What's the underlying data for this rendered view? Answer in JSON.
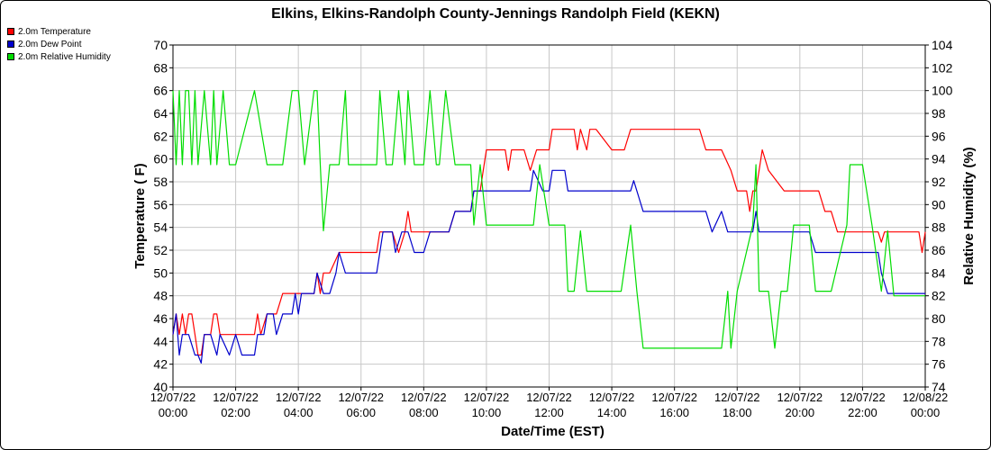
{
  "chart_data": {
    "type": "line",
    "title": "Elkins, Elkins-Randolph County-Jennings Randolph Field (KEKN)",
    "xlabel": "Date/Time (EST)",
    "ylabel": "Temperature ( F)",
    "y2label": "Relative Humidity (%)",
    "xlim": [
      0,
      24
    ],
    "ylim": [
      40,
      70
    ],
    "y2lim": [
      74,
      104
    ],
    "yticks": [
      40,
      42,
      44,
      46,
      48,
      50,
      52,
      54,
      56,
      58,
      60,
      62,
      64,
      66,
      68,
      70
    ],
    "y2ticks": [
      74,
      76,
      78,
      80,
      82,
      84,
      86,
      88,
      90,
      92,
      94,
      96,
      98,
      100,
      102,
      104
    ],
    "xticks": [
      {
        "x": 0,
        "date": "12/07/22",
        "time": "00:00"
      },
      {
        "x": 2,
        "date": "12/07/22",
        "time": "02:00"
      },
      {
        "x": 4,
        "date": "12/07/22",
        "time": "04:00"
      },
      {
        "x": 6,
        "date": "12/07/22",
        "time": "06:00"
      },
      {
        "x": 8,
        "date": "12/07/22",
        "time": "08:00"
      },
      {
        "x": 10,
        "date": "12/07/22",
        "time": "10:00"
      },
      {
        "x": 12,
        "date": "12/07/22",
        "time": "12:00"
      },
      {
        "x": 14,
        "date": "12/07/22",
        "time": "14:00"
      },
      {
        "x": 16,
        "date": "12/07/22",
        "time": "16:00"
      },
      {
        "x": 18,
        "date": "12/07/22",
        "time": "18:00"
      },
      {
        "x": 20,
        "date": "12/07/22",
        "time": "20:00"
      },
      {
        "x": 22,
        "date": "12/07/22",
        "time": "22:00"
      },
      {
        "x": 24,
        "date": "12/08/22",
        "time": "00:00"
      }
    ],
    "grid": true,
    "legend_position": "top-left",
    "series": [
      {
        "name": "2.0m Temperature",
        "axis": "left",
        "color": "#ff0000",
        "points": [
          [
            0,
            44.6
          ],
          [
            0.1,
            46.4
          ],
          [
            0.2,
            44.6
          ],
          [
            0.3,
            46.4
          ],
          [
            0.4,
            44.6
          ],
          [
            0.5,
            46.4
          ],
          [
            0.6,
            46.4
          ],
          [
            0.7,
            44.6
          ],
          [
            0.8,
            42.8
          ],
          [
            0.9,
            42.8
          ],
          [
            1.0,
            44.6
          ],
          [
            1.2,
            44.6
          ],
          [
            1.3,
            46.4
          ],
          [
            1.4,
            46.4
          ],
          [
            1.5,
            44.6
          ],
          [
            2.0,
            44.6
          ],
          [
            2.6,
            44.6
          ],
          [
            2.7,
            46.4
          ],
          [
            2.8,
            44.6
          ],
          [
            3.0,
            46.4
          ],
          [
            3.3,
            46.4
          ],
          [
            3.5,
            48.2
          ],
          [
            4.0,
            48.2
          ],
          [
            4.5,
            48.2
          ],
          [
            4.6,
            50.0
          ],
          [
            4.7,
            48.2
          ],
          [
            4.8,
            50.0
          ],
          [
            5.0,
            50.0
          ],
          [
            5.3,
            51.8
          ],
          [
            6.0,
            51.8
          ],
          [
            6.5,
            51.8
          ],
          [
            6.6,
            53.6
          ],
          [
            7.0,
            53.6
          ],
          [
            7.2,
            51.8
          ],
          [
            7.4,
            53.6
          ],
          [
            7.5,
            55.4
          ],
          [
            7.6,
            53.6
          ],
          [
            8.0,
            53.6
          ],
          [
            8.3,
            53.6
          ],
          [
            8.5,
            53.6
          ],
          [
            8.8,
            53.6
          ],
          [
            9.0,
            55.4
          ],
          [
            9.5,
            55.4
          ],
          [
            9.6,
            57.2
          ],
          [
            9.8,
            57.2
          ],
          [
            9.9,
            59.0
          ],
          [
            10.0,
            60.8
          ],
          [
            10.6,
            60.8
          ],
          [
            10.7,
            59.0
          ],
          [
            10.8,
            60.8
          ],
          [
            11.2,
            60.8
          ],
          [
            11.4,
            59.0
          ],
          [
            11.6,
            60.8
          ],
          [
            11.8,
            60.8
          ],
          [
            12.0,
            60.8
          ],
          [
            12.1,
            62.6
          ],
          [
            12.8,
            62.6
          ],
          [
            12.9,
            60.8
          ],
          [
            13.0,
            62.6
          ],
          [
            13.2,
            60.8
          ],
          [
            13.3,
            62.6
          ],
          [
            13.5,
            62.6
          ],
          [
            14.0,
            60.8
          ],
          [
            14.4,
            60.8
          ],
          [
            14.6,
            62.6
          ],
          [
            16.0,
            62.6
          ],
          [
            16.2,
            62.6
          ],
          [
            16.8,
            62.6
          ],
          [
            17.0,
            60.8
          ],
          [
            17.5,
            60.8
          ],
          [
            17.8,
            59.0
          ],
          [
            18.0,
            57.2
          ],
          [
            18.3,
            57.2
          ],
          [
            18.4,
            55.4
          ],
          [
            18.5,
            57.2
          ],
          [
            18.6,
            57.2
          ],
          [
            18.7,
            59.0
          ],
          [
            18.8,
            60.8
          ],
          [
            19.0,
            59.0
          ],
          [
            19.5,
            57.2
          ],
          [
            19.7,
            57.2
          ],
          [
            20.0,
            57.2
          ],
          [
            20.6,
            57.2
          ],
          [
            20.8,
            55.4
          ],
          [
            21.0,
            55.4
          ],
          [
            21.2,
            53.6
          ],
          [
            22.0,
            53.6
          ],
          [
            22.5,
            53.6
          ],
          [
            22.6,
            52.7
          ],
          [
            22.7,
            53.6
          ],
          [
            23.0,
            53.6
          ],
          [
            23.8,
            53.6
          ],
          [
            23.9,
            51.8
          ],
          [
            24.0,
            53.6
          ]
        ]
      },
      {
        "name": "2.0m Dew Point",
        "axis": "left",
        "color": "#0000cc",
        "points": [
          [
            0,
            44.6
          ],
          [
            0.1,
            46.4
          ],
          [
            0.2,
            42.8
          ],
          [
            0.3,
            44.6
          ],
          [
            0.5,
            44.6
          ],
          [
            0.7,
            42.8
          ],
          [
            0.8,
            42.8
          ],
          [
            0.9,
            42.1
          ],
          [
            1.0,
            44.6
          ],
          [
            1.2,
            44.6
          ],
          [
            1.4,
            42.8
          ],
          [
            1.5,
            44.6
          ],
          [
            1.8,
            42.8
          ],
          [
            2.0,
            44.6
          ],
          [
            2.2,
            42.8
          ],
          [
            2.6,
            42.8
          ],
          [
            2.7,
            44.6
          ],
          [
            2.9,
            44.6
          ],
          [
            3.0,
            46.4
          ],
          [
            3.2,
            46.4
          ],
          [
            3.3,
            44.6
          ],
          [
            3.5,
            46.4
          ],
          [
            3.8,
            46.4
          ],
          [
            3.9,
            48.2
          ],
          [
            4.0,
            46.4
          ],
          [
            4.1,
            48.2
          ],
          [
            4.5,
            48.2
          ],
          [
            4.6,
            50.0
          ],
          [
            4.8,
            48.2
          ],
          [
            5.0,
            48.2
          ],
          [
            5.2,
            50.0
          ],
          [
            5.3,
            51.8
          ],
          [
            5.5,
            50.0
          ],
          [
            6.0,
            50.0
          ],
          [
            6.5,
            50.0
          ],
          [
            6.6,
            51.8
          ],
          [
            6.7,
            53.6
          ],
          [
            7.0,
            53.6
          ],
          [
            7.1,
            51.8
          ],
          [
            7.3,
            53.6
          ],
          [
            7.5,
            53.6
          ],
          [
            7.7,
            51.8
          ],
          [
            8.0,
            51.8
          ],
          [
            8.2,
            53.6
          ],
          [
            8.5,
            53.6
          ],
          [
            8.8,
            53.6
          ],
          [
            9.0,
            55.4
          ],
          [
            9.5,
            55.4
          ],
          [
            9.6,
            57.2
          ],
          [
            10.0,
            57.2
          ],
          [
            10.6,
            57.2
          ],
          [
            10.8,
            57.2
          ],
          [
            11.0,
            57.2
          ],
          [
            11.2,
            57.2
          ],
          [
            11.4,
            57.2
          ],
          [
            11.5,
            59.0
          ],
          [
            11.8,
            57.2
          ],
          [
            12.0,
            57.2
          ],
          [
            12.1,
            59.0
          ],
          [
            12.3,
            59.0
          ],
          [
            12.5,
            59.0
          ],
          [
            12.6,
            57.2
          ],
          [
            13.0,
            57.2
          ],
          [
            13.5,
            57.2
          ],
          [
            14.0,
            57.2
          ],
          [
            14.6,
            57.2
          ],
          [
            14.7,
            58.1
          ],
          [
            14.8,
            57.2
          ],
          [
            15.0,
            55.4
          ],
          [
            15.5,
            55.4
          ],
          [
            16.0,
            55.4
          ],
          [
            17.0,
            55.4
          ],
          [
            17.2,
            53.6
          ],
          [
            17.5,
            55.4
          ],
          [
            17.7,
            53.6
          ],
          [
            18.0,
            53.6
          ],
          [
            18.5,
            53.6
          ],
          [
            18.6,
            55.4
          ],
          [
            18.7,
            53.6
          ],
          [
            19.0,
            53.6
          ],
          [
            19.5,
            53.6
          ],
          [
            20.0,
            53.6
          ],
          [
            20.3,
            53.6
          ],
          [
            20.5,
            51.8
          ],
          [
            21.0,
            51.8
          ],
          [
            21.5,
            51.8
          ],
          [
            22.0,
            51.8
          ],
          [
            22.5,
            51.8
          ],
          [
            22.6,
            50.0
          ],
          [
            22.8,
            48.2
          ],
          [
            23.0,
            48.2
          ],
          [
            23.8,
            48.2
          ],
          [
            24.0,
            48.2
          ]
        ]
      },
      {
        "name": "2.0m Relative Humidity",
        "axis": "right",
        "color": "#00dd00",
        "points": [
          [
            0,
            100
          ],
          [
            0.1,
            93.5
          ],
          [
            0.2,
            100
          ],
          [
            0.3,
            93.5
          ],
          [
            0.4,
            100
          ],
          [
            0.5,
            100
          ],
          [
            0.6,
            93.5
          ],
          [
            0.7,
            100
          ],
          [
            0.8,
            93.5
          ],
          [
            1.0,
            100
          ],
          [
            1.2,
            93.5
          ],
          [
            1.3,
            100
          ],
          [
            1.4,
            93.5
          ],
          [
            1.6,
            100
          ],
          [
            1.8,
            93.5
          ],
          [
            2.0,
            93.5
          ],
          [
            2.6,
            100
          ],
          [
            3.0,
            93.5
          ],
          [
            3.5,
            93.5
          ],
          [
            3.8,
            100
          ],
          [
            4.0,
            100
          ],
          [
            4.2,
            93.5
          ],
          [
            4.5,
            100
          ],
          [
            4.6,
            100
          ],
          [
            4.7,
            93.5
          ],
          [
            4.8,
            87.7
          ],
          [
            5.0,
            93.5
          ],
          [
            5.3,
            93.5
          ],
          [
            5.5,
            100
          ],
          [
            5.6,
            93.5
          ],
          [
            6.0,
            93.5
          ],
          [
            6.5,
            93.5
          ],
          [
            6.6,
            100
          ],
          [
            6.8,
            93.5
          ],
          [
            7.0,
            93.5
          ],
          [
            7.2,
            100
          ],
          [
            7.4,
            93.5
          ],
          [
            7.5,
            100
          ],
          [
            7.7,
            93.5
          ],
          [
            8.0,
            93.5
          ],
          [
            8.2,
            100
          ],
          [
            8.4,
            93.5
          ],
          [
            8.5,
            93.5
          ],
          [
            8.7,
            100
          ],
          [
            9.0,
            93.5
          ],
          [
            9.5,
            93.5
          ],
          [
            9.6,
            88.2
          ],
          [
            9.8,
            93.5
          ],
          [
            10.0,
            88.2
          ],
          [
            10.4,
            88.2
          ],
          [
            10.6,
            88.2
          ],
          [
            10.8,
            88.2
          ],
          [
            11.0,
            88.2
          ],
          [
            11.2,
            88.2
          ],
          [
            11.5,
            88.2
          ],
          [
            11.7,
            93.5
          ],
          [
            12.0,
            88.2
          ],
          [
            12.5,
            88.2
          ],
          [
            12.6,
            82.4
          ],
          [
            12.8,
            82.4
          ],
          [
            13.0,
            87.7
          ],
          [
            13.2,
            82.4
          ],
          [
            13.5,
            82.4
          ],
          [
            14.0,
            82.4
          ],
          [
            14.3,
            82.4
          ],
          [
            14.6,
            88.2
          ],
          [
            14.8,
            82.4
          ],
          [
            15.0,
            77.4
          ],
          [
            15.5,
            77.4
          ],
          [
            16.0,
            77.4
          ],
          [
            16.5,
            77.4
          ],
          [
            17.0,
            77.4
          ],
          [
            17.5,
            77.4
          ],
          [
            17.7,
            82.4
          ],
          [
            17.8,
            77.4
          ],
          [
            18.0,
            82.4
          ],
          [
            18.5,
            88.2
          ],
          [
            18.6,
            93.5
          ],
          [
            18.7,
            82.4
          ],
          [
            19.0,
            82.4
          ],
          [
            19.2,
            77.4
          ],
          [
            19.4,
            82.4
          ],
          [
            19.6,
            82.4
          ],
          [
            19.8,
            88.2
          ],
          [
            20.0,
            88.2
          ],
          [
            20.3,
            88.2
          ],
          [
            20.5,
            82.4
          ],
          [
            21.0,
            82.4
          ],
          [
            21.5,
            88.2
          ],
          [
            21.6,
            93.5
          ],
          [
            22.0,
            93.5
          ],
          [
            22.3,
            88.2
          ],
          [
            22.6,
            82.4
          ],
          [
            22.8,
            87.7
          ],
          [
            23.0,
            82.0
          ],
          [
            23.5,
            82.0
          ],
          [
            23.8,
            82.0
          ],
          [
            24.0,
            82.0
          ]
        ]
      }
    ]
  }
}
